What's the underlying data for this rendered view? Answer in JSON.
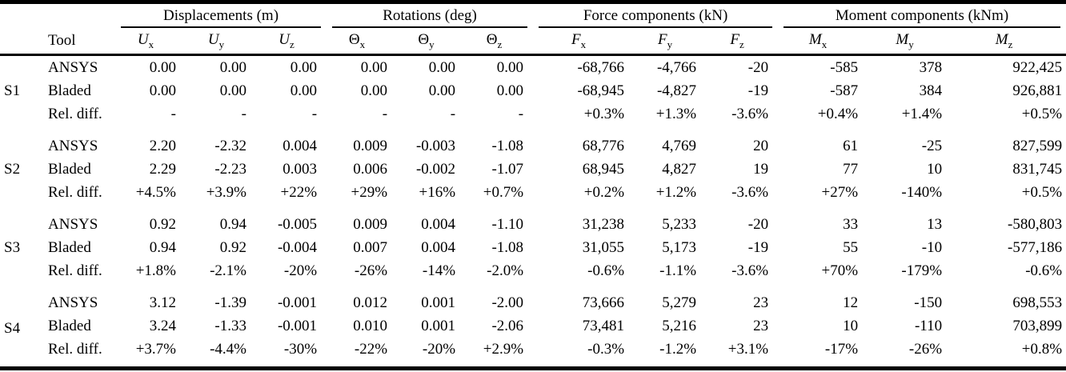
{
  "table": {
    "tool_header": "Tool",
    "group_headers": [
      {
        "label": "Displacements (m)"
      },
      {
        "label": "Rotations (deg)"
      },
      {
        "label": "Force components (kN)"
      },
      {
        "label": "Moment components (kNm)"
      }
    ],
    "columns": [
      {
        "key": "ux",
        "base": "U",
        "sub": "x",
        "italic": true
      },
      {
        "key": "uy",
        "base": "U",
        "sub": "y",
        "italic": true
      },
      {
        "key": "uz",
        "base": "U",
        "sub": "z",
        "italic": true
      },
      {
        "key": "thx",
        "base": "Θ",
        "sub": "x",
        "italic": false
      },
      {
        "key": "thy",
        "base": "Θ",
        "sub": "y",
        "italic": false
      },
      {
        "key": "thz",
        "base": "Θ",
        "sub": "z",
        "italic": false
      },
      {
        "key": "fx",
        "base": "F",
        "sub": "x",
        "italic": true
      },
      {
        "key": "fy",
        "base": "F",
        "sub": "y",
        "italic": true
      },
      {
        "key": "fz",
        "base": "F",
        "sub": "z",
        "italic": true
      },
      {
        "key": "mx",
        "base": "M",
        "sub": "x",
        "italic": true
      },
      {
        "key": "my",
        "base": "M",
        "sub": "y",
        "italic": true
      },
      {
        "key": "mz",
        "base": "M",
        "sub": "z",
        "italic": true
      }
    ],
    "sections": [
      {
        "label": "S1",
        "rows": [
          {
            "tool": "ANSYS",
            "values": [
              "0.00",
              "0.00",
              "0.00",
              "0.00",
              "0.00",
              "0.00",
              "-68,766",
              "-4,766",
              "-20",
              "-585",
              "378",
              "922,425"
            ]
          },
          {
            "tool": "Bladed",
            "values": [
              "0.00",
              "0.00",
              "0.00",
              "0.00",
              "0.00",
              "0.00",
              "-68,945",
              "-4,827",
              "-19",
              "-587",
              "384",
              "926,881"
            ]
          },
          {
            "tool": "Rel. diff.",
            "values": [
              "-",
              "-",
              "-",
              "-",
              "-",
              "-",
              "+0.3%",
              "+1.3%",
              "-3.6%",
              "+0.4%",
              "+1.4%",
              "+0.5%"
            ]
          }
        ]
      },
      {
        "label": "S2",
        "rows": [
          {
            "tool": "ANSYS",
            "values": [
              "2.20",
              "-2.32",
              "0.004",
              "0.009",
              "-0.003",
              "-1.08",
              "68,776",
              "4,769",
              "20",
              "61",
              "-25",
              "827,599"
            ]
          },
          {
            "tool": "Bladed",
            "values": [
              "2.29",
              "-2.23",
              "0.003",
              "0.006",
              "-0.002",
              "-1.07",
              "68,945",
              "4,827",
              "19",
              "77",
              "10",
              "831,745"
            ]
          },
          {
            "tool": "Rel. diff.",
            "values": [
              "+4.5%",
              "+3.9%",
              "+22%",
              "+29%",
              "+16%",
              "+0.7%",
              "+0.2%",
              "+1.2%",
              "-3.6%",
              "+27%",
              "-140%",
              "+0.5%"
            ]
          }
        ]
      },
      {
        "label": "S3",
        "rows": [
          {
            "tool": "ANSYS",
            "values": [
              "0.92",
              "0.94",
              "-0.005",
              "0.009",
              "0.004",
              "-1.10",
              "31,238",
              "5,233",
              "-20",
              "33",
              "13",
              "-580,803"
            ]
          },
          {
            "tool": "Bladed",
            "values": [
              "0.94",
              "0.92",
              "-0.004",
              "0.007",
              "0.004",
              "-1.08",
              "31,055",
              "5,173",
              "-19",
              "55",
              "-10",
              "-577,186"
            ]
          },
          {
            "tool": "Rel. diff.",
            "values": [
              "+1.8%",
              "-2.1%",
              "-20%",
              "-26%",
              "-14%",
              "-2.0%",
              "-0.6%",
              "-1.1%",
              "-3.6%",
              "+70%",
              "-179%",
              "-0.6%"
            ]
          }
        ]
      },
      {
        "label": "S4",
        "rows": [
          {
            "tool": "ANSYS",
            "values": [
              "3.12",
              "-1.39",
              "-0.001",
              "0.012",
              "0.001",
              "-2.00",
              "73,666",
              "5,279",
              "23",
              "12",
              "-150",
              "698,553"
            ]
          },
          {
            "tool": "Bladed",
            "values": [
              "3.24",
              "-1.33",
              "-0.001",
              "0.010",
              "0.001",
              "-2.06",
              "73,481",
              "5,216",
              "23",
              "10",
              "-110",
              "703,899"
            ]
          },
          {
            "tool": "Rel. diff.",
            "values": [
              "+3.7%",
              "-4.4%",
              "-30%",
              "-22%",
              "-20%",
              "+2.9%",
              "-0.3%",
              "-1.2%",
              "+3.1%",
              "-17%",
              "-26%",
              "+0.8%"
            ]
          }
        ]
      }
    ]
  }
}
